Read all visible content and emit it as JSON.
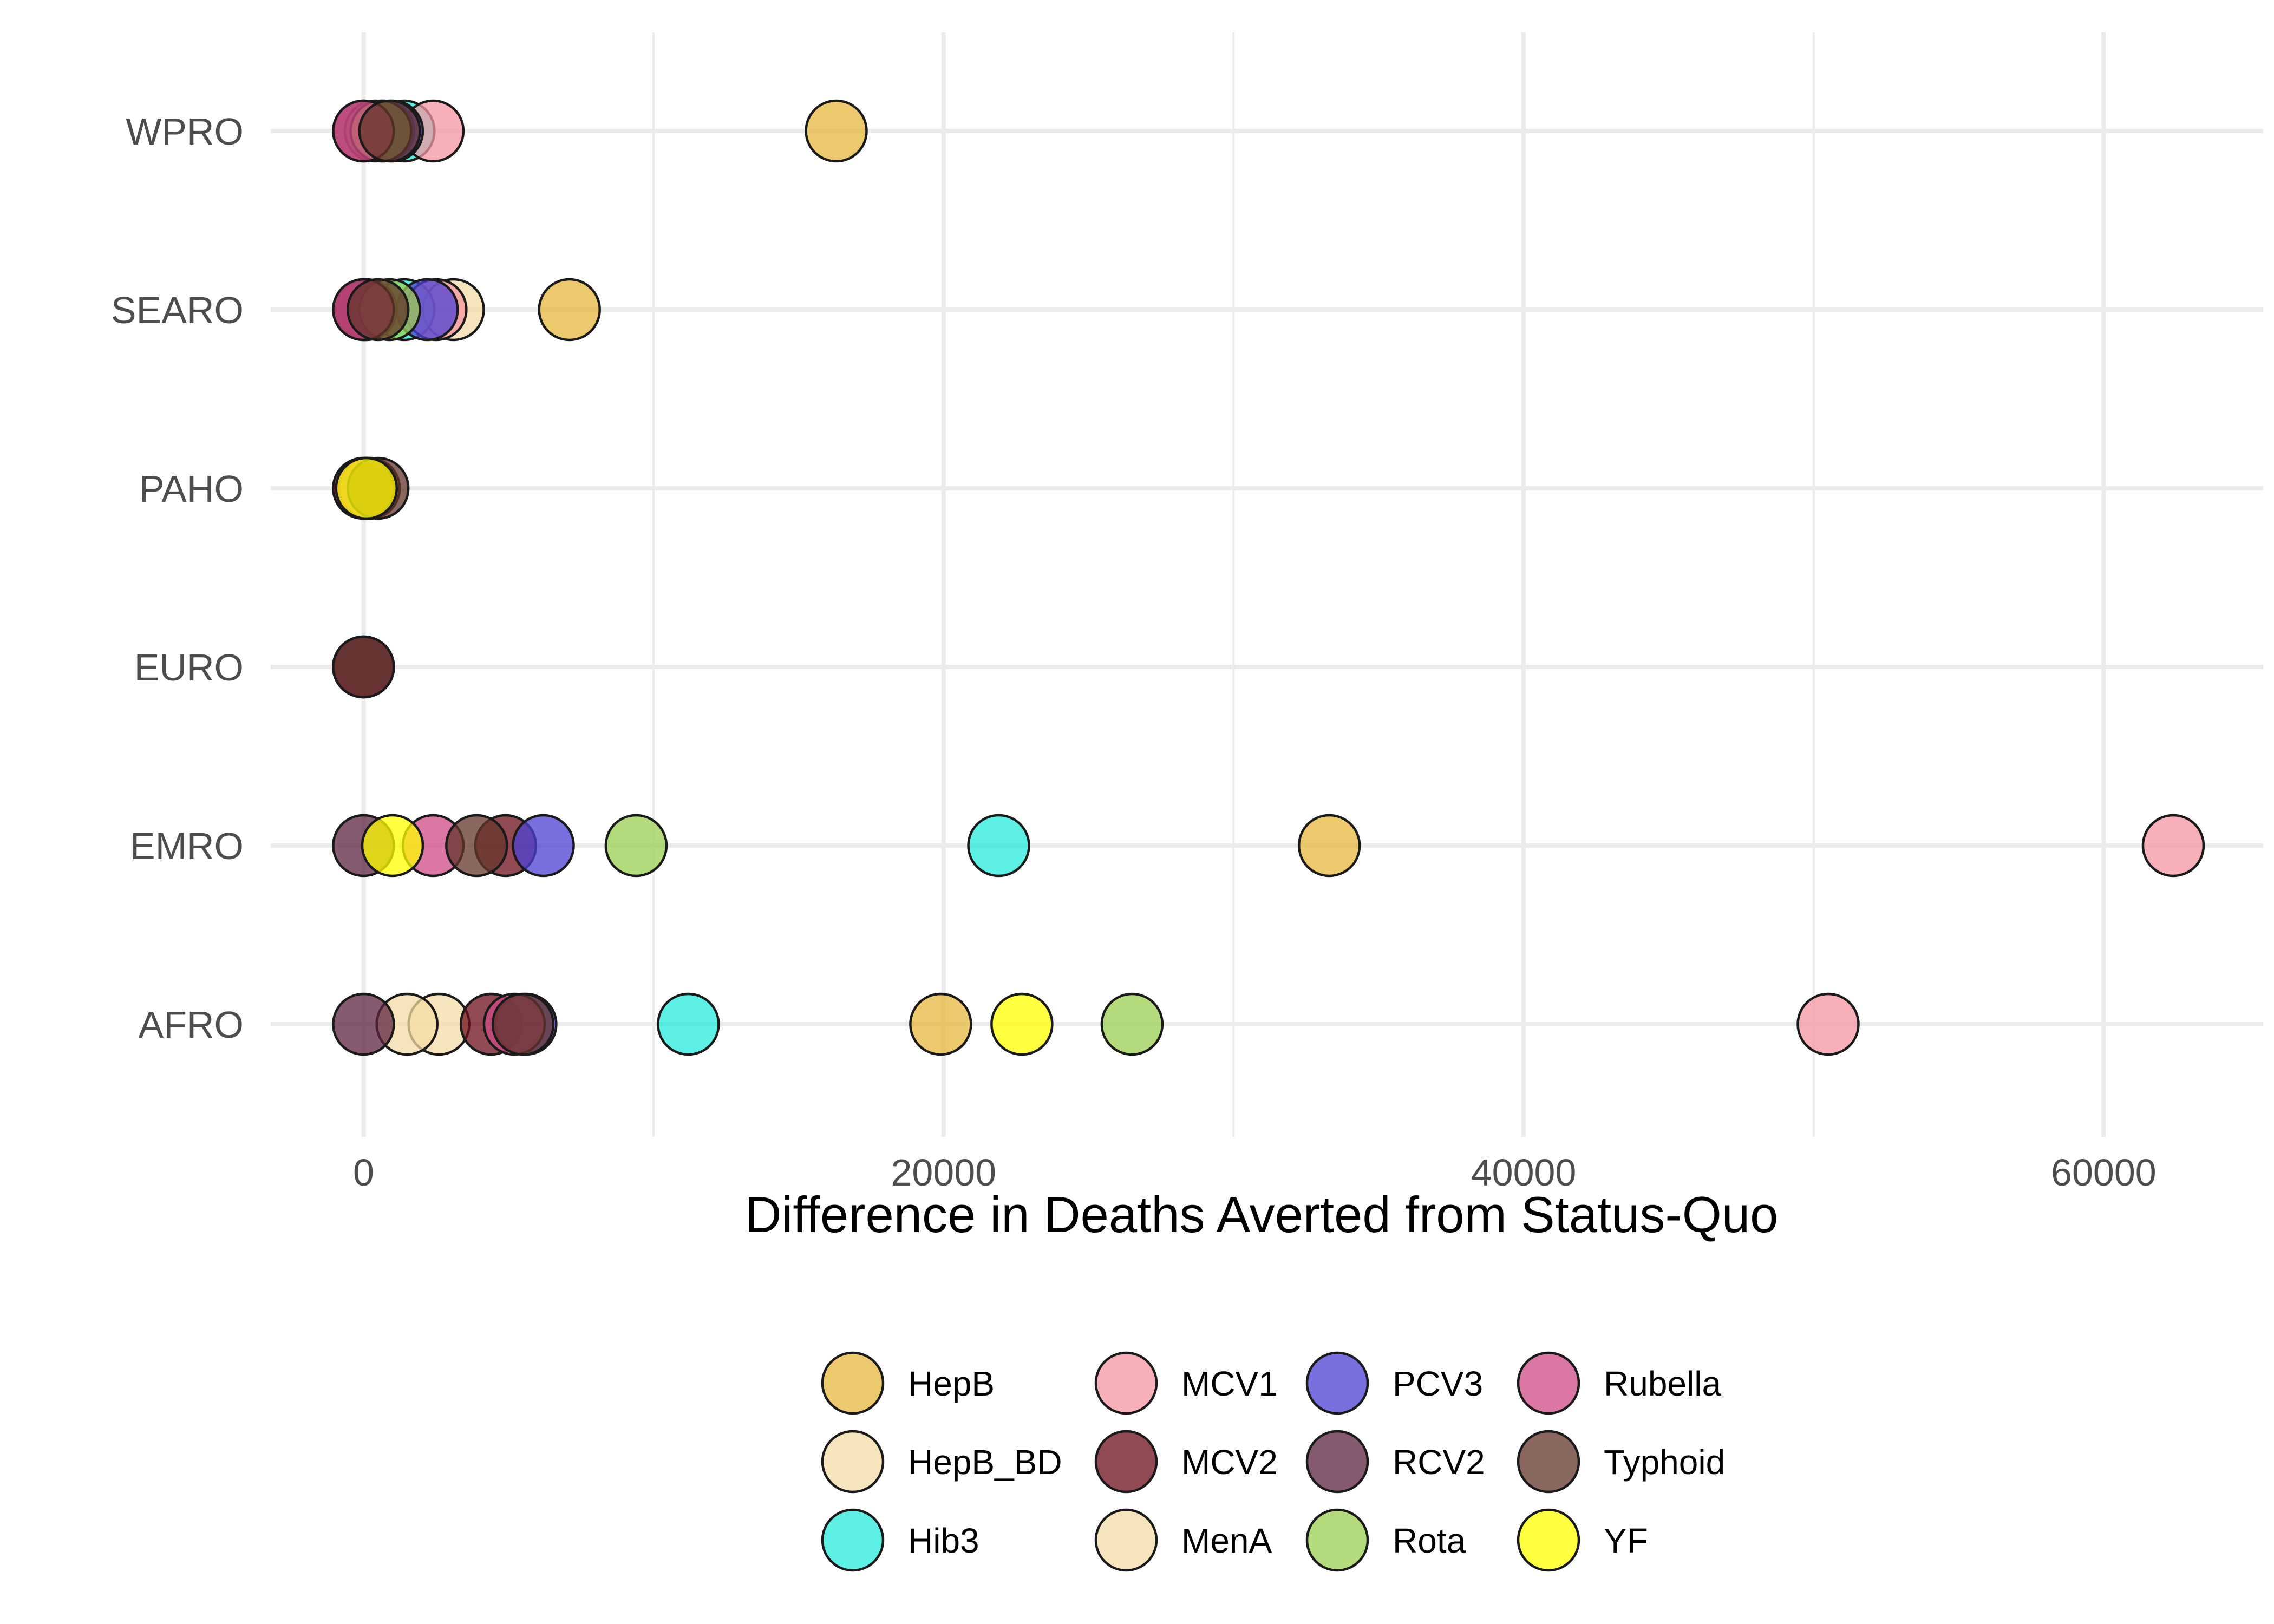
{
  "chart_data": {
    "type": "scatter",
    "title": "",
    "xlabel": "Difference in Deaths Averted from Status-Quo",
    "ylabel": "",
    "xlim": [
      -3200,
      65500
    ],
    "x_ticks": [
      0,
      20000,
      40000,
      60000
    ],
    "x_tick_labels": [
      "0",
      "20000",
      "40000",
      "60000"
    ],
    "categories": [
      "AFRO",
      "EMRO",
      "EURO",
      "PAHO",
      "SEARO",
      "WPRO"
    ],
    "grid": true,
    "legend_position": "bottom",
    "series": [
      {
        "name": "HepB",
        "color": "#E6B73B",
        "points": [
          {
            "region": "AFRO",
            "x": 19900
          },
          {
            "region": "EMRO",
            "x": 33300
          },
          {
            "region": "SEARO",
            "x": 7100
          },
          {
            "region": "WPRO",
            "x": 16300
          }
        ]
      },
      {
        "name": "HepB_BD",
        "color": "#F3DCA5",
        "points": [
          {
            "region": "AFRO",
            "x": 2600
          },
          {
            "region": "SEARO",
            "x": 3100
          },
          {
            "region": "PAHO",
            "x": 200
          },
          {
            "region": "WPRO",
            "x": 400
          }
        ]
      },
      {
        "name": "Hib3",
        "color": "#25EADA",
        "points": [
          {
            "region": "AFRO",
            "x": 11200
          },
          {
            "region": "EMRO",
            "x": 21900
          },
          {
            "region": "SEARO",
            "x": 1400
          },
          {
            "region": "WPRO",
            "x": 1400
          },
          {
            "region": "PAHO",
            "x": 100
          }
        ]
      },
      {
        "name": "MCV1",
        "color": "#F595A0",
        "points": [
          {
            "region": "AFRO",
            "x": 50500
          },
          {
            "region": "EMRO",
            "x": 62400
          },
          {
            "region": "SEARO",
            "x": 2500
          },
          {
            "region": "WPRO",
            "x": 2400
          },
          {
            "region": "PAHO",
            "x": 100
          }
        ]
      },
      {
        "name": "MCV2",
        "color": "#6E0F1A",
        "points": [
          {
            "region": "AFRO",
            "x": 4400
          },
          {
            "region": "EMRO",
            "x": 4900
          },
          {
            "region": "SEARO",
            "x": 100
          },
          {
            "region": "EURO",
            "x": 0
          },
          {
            "region": "WPRO",
            "x": 700
          },
          {
            "region": "PAHO",
            "x": 0
          }
        ]
      },
      {
        "name": "MenA",
        "color": "#F3DCA5",
        "points": [
          {
            "region": "AFRO",
            "x": 1500
          }
        ]
      },
      {
        "name": "PCV3",
        "color": "#4C40D4",
        "points": [
          {
            "region": "AFRO",
            "x": 5600
          },
          {
            "region": "EMRO",
            "x": 6200
          },
          {
            "region": "SEARO",
            "x": 2200
          },
          {
            "region": "WPRO",
            "x": 1000
          },
          {
            "region": "PAHO",
            "x": 100
          }
        ]
      },
      {
        "name": "RCV2",
        "color": "#5E2340",
        "points": [
          {
            "region": "AFRO",
            "x": 0
          },
          {
            "region": "EMRO",
            "x": 0
          },
          {
            "region": "SEARO",
            "x": 0
          },
          {
            "region": "WPRO",
            "x": 0
          },
          {
            "region": "EURO",
            "x": 0
          }
        ]
      },
      {
        "name": "Rota",
        "color": "#9BCF4F",
        "points": [
          {
            "region": "AFRO",
            "x": 26500
          },
          {
            "region": "EMRO",
            "x": 9400
          },
          {
            "region": "SEARO",
            "x": 900
          },
          {
            "region": "WPRO",
            "x": 600
          },
          {
            "region": "PAHO",
            "x": 200
          }
        ]
      },
      {
        "name": "Rubella",
        "color": "#CF4A86",
        "points": [
          {
            "region": "AFRO",
            "x": 5200
          },
          {
            "region": "EMRO",
            "x": 2400
          },
          {
            "region": "SEARO",
            "x": 0
          },
          {
            "region": "WPRO",
            "x": 0
          },
          {
            "region": "PAHO",
            "x": 0
          }
        ]
      },
      {
        "name": "Typhoid",
        "color": "#643529",
        "points": [
          {
            "region": "AFRO",
            "x": 5500
          },
          {
            "region": "EMRO",
            "x": 3900
          },
          {
            "region": "SEARO",
            "x": 500
          },
          {
            "region": "WPRO",
            "x": 900
          },
          {
            "region": "PAHO",
            "x": 500
          },
          {
            "region": "EURO",
            "x": 0
          }
        ]
      },
      {
        "name": "YF",
        "color": "#FFFF00",
        "points": [
          {
            "region": "AFRO",
            "x": 22700
          },
          {
            "region": "EMRO",
            "x": 1000
          },
          {
            "region": "PAHO",
            "x": 100
          }
        ]
      }
    ]
  }
}
